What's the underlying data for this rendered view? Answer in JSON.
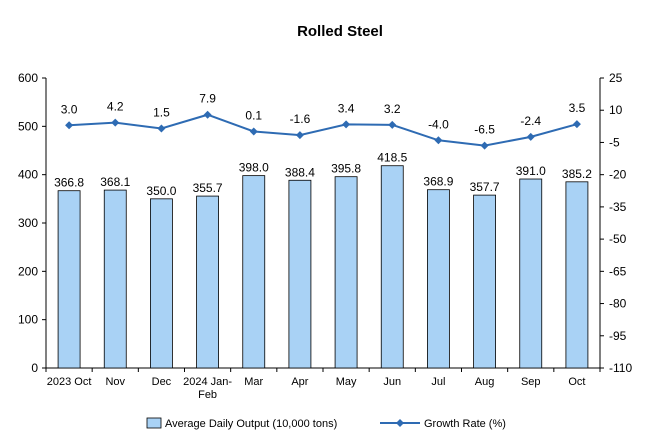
{
  "chart_data": {
    "type": "bar",
    "title": "Rolled Steel",
    "categories": [
      "2023 Oct",
      "Nov",
      "Dec",
      "2024 Jan-Feb",
      "Mar",
      "Apr",
      "May",
      "Jun",
      "Jul",
      "Aug",
      "Sep",
      "Oct"
    ],
    "series": [
      {
        "name": "Average Daily Output (10,000 tons)",
        "type": "bar",
        "axis": "left",
        "color": "#a9d2f5",
        "values": [
          366.8,
          368.1,
          350.0,
          355.7,
          398.0,
          388.4,
          395.8,
          418.5,
          368.9,
          357.7,
          391.0,
          385.2
        ],
        "labels": [
          "366.8",
          "368.1",
          "350.0",
          "355.7",
          "398.0",
          "388.4",
          "395.8",
          "418.5",
          "368.9",
          "357.7",
          "391.0",
          "385.2"
        ]
      },
      {
        "name": "Growth Rate (%)",
        "type": "line",
        "axis": "right",
        "color": "#2e6bb3",
        "values": [
          3.0,
          4.2,
          1.5,
          7.9,
          0.1,
          -1.6,
          3.4,
          3.2,
          -4.0,
          -6.5,
          -2.4,
          3.5
        ],
        "labels": [
          "3.0",
          "4.2",
          "1.5",
          "7.9",
          "0.1",
          "-1.6",
          "3.4",
          "3.2",
          "-4.0",
          "-6.5",
          "-2.4",
          "3.5"
        ]
      }
    ],
    "left_axis": {
      "ylim": [
        0,
        600
      ],
      "ticks": [
        0,
        100,
        200,
        300,
        400,
        500,
        600
      ],
      "tick_labels": [
        "0",
        "100",
        "200",
        "300",
        "400",
        "500",
        "600"
      ]
    },
    "right_axis": {
      "ylim": [
        -110,
        25
      ],
      "ticks": [
        -110,
        -95,
        -80,
        -65,
        -50,
        -35,
        -20,
        -5,
        10,
        25
      ],
      "tick_labels": [
        "-110",
        "-95",
        "-80",
        "-65",
        "-50",
        "-35",
        "-20",
        "-5",
        "10",
        "25"
      ]
    },
    "legend_position": "bottom",
    "grid": false
  }
}
